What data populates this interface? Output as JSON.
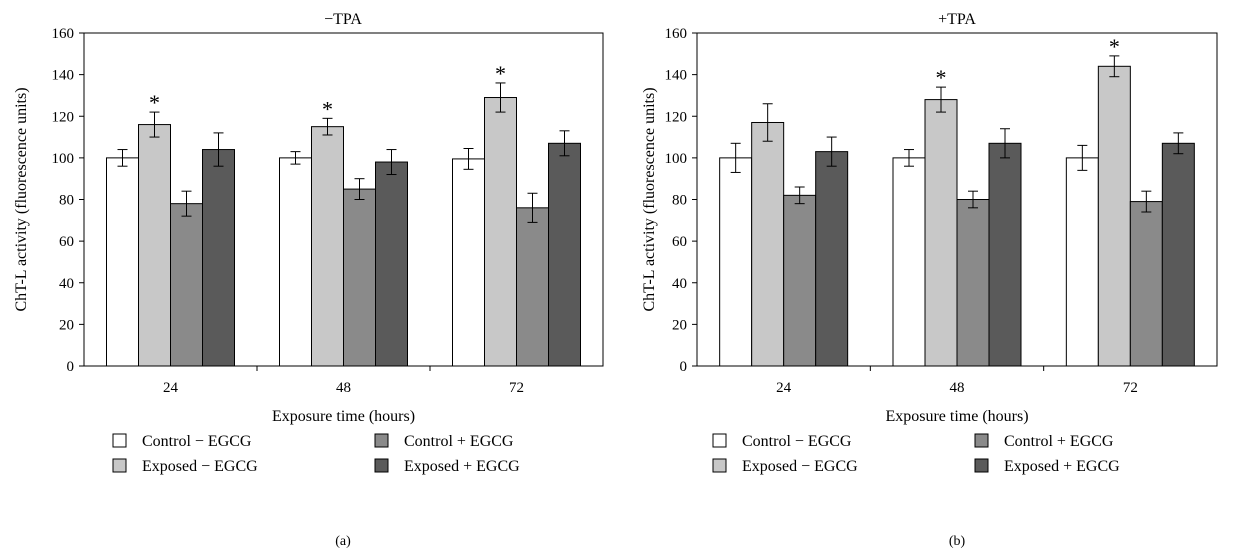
{
  "chart_data": [
    {
      "type": "bar",
      "title": "−TPA",
      "panel_label": "(a)",
      "xlabel": "Exposure time (hours)",
      "ylabel": "ChT-L activity (fluorescence units)",
      "ylim": [
        0,
        160
      ],
      "yticks": [
        0,
        20,
        40,
        60,
        80,
        100,
        120,
        140,
        160
      ],
      "categories": [
        "24",
        "48",
        "72"
      ],
      "series": [
        {
          "name": "Control − EGCG",
          "color": "#ffffff",
          "values": [
            100,
            100,
            99.5
          ],
          "errors": [
            4,
            3,
            5
          ]
        },
        {
          "name": "Exposed − EGCG",
          "color": "#c8c8c8",
          "values": [
            116,
            115,
            129
          ],
          "errors": [
            6,
            4,
            7
          ]
        },
        {
          "name": "Control + EGCG",
          "color": "#8a8a8a",
          "values": [
            78,
            85,
            76
          ],
          "errors": [
            6,
            5,
            7
          ]
        },
        {
          "name": "Exposed + EGCG",
          "color": "#5a5a5a",
          "values": [
            104,
            98,
            107
          ],
          "errors": [
            8,
            6,
            6
          ]
        }
      ],
      "significance": [
        {
          "category": "24",
          "series": 1,
          "mark": "*"
        },
        {
          "category": "48",
          "series": 1,
          "mark": "*"
        },
        {
          "category": "72",
          "series": 1,
          "mark": "*"
        }
      ],
      "legend_placement": "bottom"
    },
    {
      "type": "bar",
      "title": "+TPA",
      "panel_label": "(b)",
      "xlabel": "Exposure time (hours)",
      "ylabel": "ChT-L activity (fluorescence units)",
      "ylim": [
        0,
        160
      ],
      "yticks": [
        0,
        20,
        40,
        60,
        80,
        100,
        120,
        140,
        160
      ],
      "categories": [
        "24",
        "48",
        "72"
      ],
      "series": [
        {
          "name": "Control − EGCG",
          "color": "#ffffff",
          "values": [
            100,
            100,
            100
          ],
          "errors": [
            7,
            4,
            6
          ]
        },
        {
          "name": "Exposed − EGCG",
          "color": "#c8c8c8",
          "values": [
            117,
            128,
            144
          ],
          "errors": [
            9,
            6,
            5
          ]
        },
        {
          "name": "Control + EGCG",
          "color": "#8a8a8a",
          "values": [
            82,
            80,
            79
          ],
          "errors": [
            4,
            4,
            5
          ]
        },
        {
          "name": "Exposed + EGCG",
          "color": "#5a5a5a",
          "values": [
            103,
            107,
            107
          ],
          "errors": [
            7,
            7,
            5
          ]
        }
      ],
      "significance": [
        {
          "category": "48",
          "series": 1,
          "mark": "*"
        },
        {
          "category": "72",
          "series": 1,
          "mark": "*"
        }
      ],
      "legend_placement": "bottom"
    }
  ]
}
